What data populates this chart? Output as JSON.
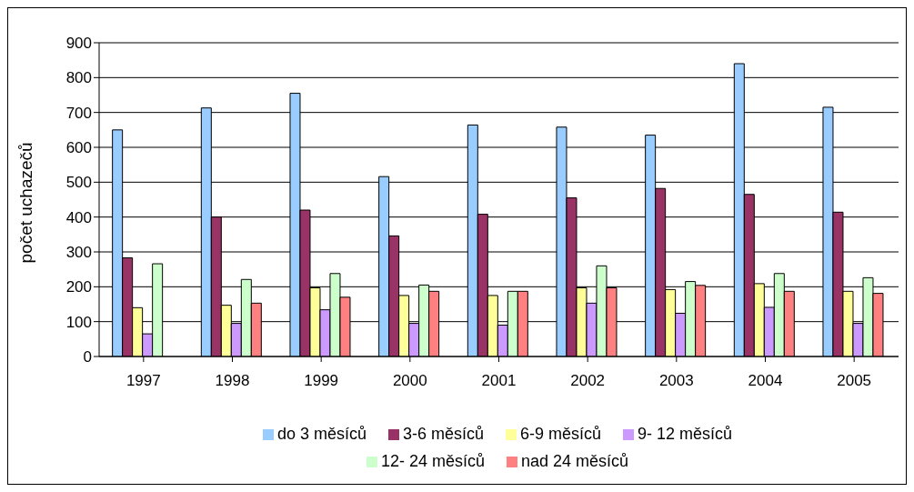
{
  "chart_data": {
    "type": "bar",
    "ylabel": "počet uchazečů",
    "categories": [
      "1997",
      "1998",
      "1999",
      "2000",
      "2001",
      "2002",
      "2003",
      "2004",
      "2005"
    ],
    "series": [
      {
        "name": "do 3 měsíců",
        "color": "#99ccff",
        "values": [
          650,
          713,
          755,
          516,
          664,
          658,
          635,
          840,
          715
        ]
      },
      {
        "name": "3-6 měsíců",
        "color": "#993366",
        "values": [
          283,
          400,
          420,
          346,
          408,
          455,
          482,
          465,
          414
        ]
      },
      {
        "name": "6-9 měsíců",
        "color": "#ffff99",
        "values": [
          140,
          147,
          197,
          175,
          175,
          197,
          192,
          209,
          187
        ]
      },
      {
        "name": "9- 12 měsíců",
        "color": "#cc99ff",
        "values": [
          65,
          95,
          134,
          95,
          90,
          153,
          124,
          141,
          95
        ]
      },
      {
        "name": "12- 24 měsíců",
        "color": "#ccffcc",
        "values": [
          266,
          221,
          238,
          205,
          187,
          260,
          215,
          238,
          226
        ]
      },
      {
        "name": "nad 24 měsíců",
        "color": "#ff8080",
        "values": [
          null,
          153,
          170,
          187,
          187,
          197,
          204,
          187,
          181
        ]
      }
    ],
    "ylim": [
      0,
      900
    ],
    "yticks": [
      0,
      100,
      200,
      300,
      400,
      500,
      600,
      700,
      800,
      900
    ],
    "grid": "y",
    "legend": "bottom"
  }
}
